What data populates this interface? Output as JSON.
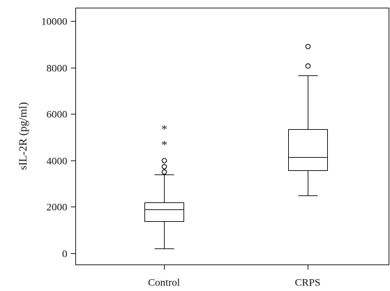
{
  "chart_data": {
    "type": "box",
    "title": "",
    "xlabel": "",
    "ylabel": "sIL-2R (pg/ml)",
    "ylim": [
      -300,
      10600
    ],
    "yticks": [
      0,
      2000,
      4000,
      6000,
      8000,
      10000
    ],
    "ytick_labels": [
      "0",
      "2000",
      "4000",
      "6000",
      "8000",
      "10000"
    ],
    "grid": false,
    "legend": "none",
    "categories": [
      "Control",
      "CRPS"
    ],
    "boxes": [
      {
        "category": "Control",
        "whisker_low": 220,
        "q1": 1380,
        "median": 1900,
        "q3": 2200,
        "whisker_high": 3380,
        "outliers_circle": [
          3500,
          3730,
          3990
        ],
        "outliers_extreme": [
          4770,
          5450
        ]
      },
      {
        "category": "CRPS",
        "whisker_low": 2480,
        "q1": 3560,
        "median": 4150,
        "q3": 5360,
        "whisker_high": 7650,
        "outliers_circle": [
          8060,
          8900
        ],
        "outliers_extreme": []
      }
    ],
    "style": {
      "line_color": "#111111",
      "box_fill": "#ffffff",
      "extreme_marker": "*"
    }
  }
}
